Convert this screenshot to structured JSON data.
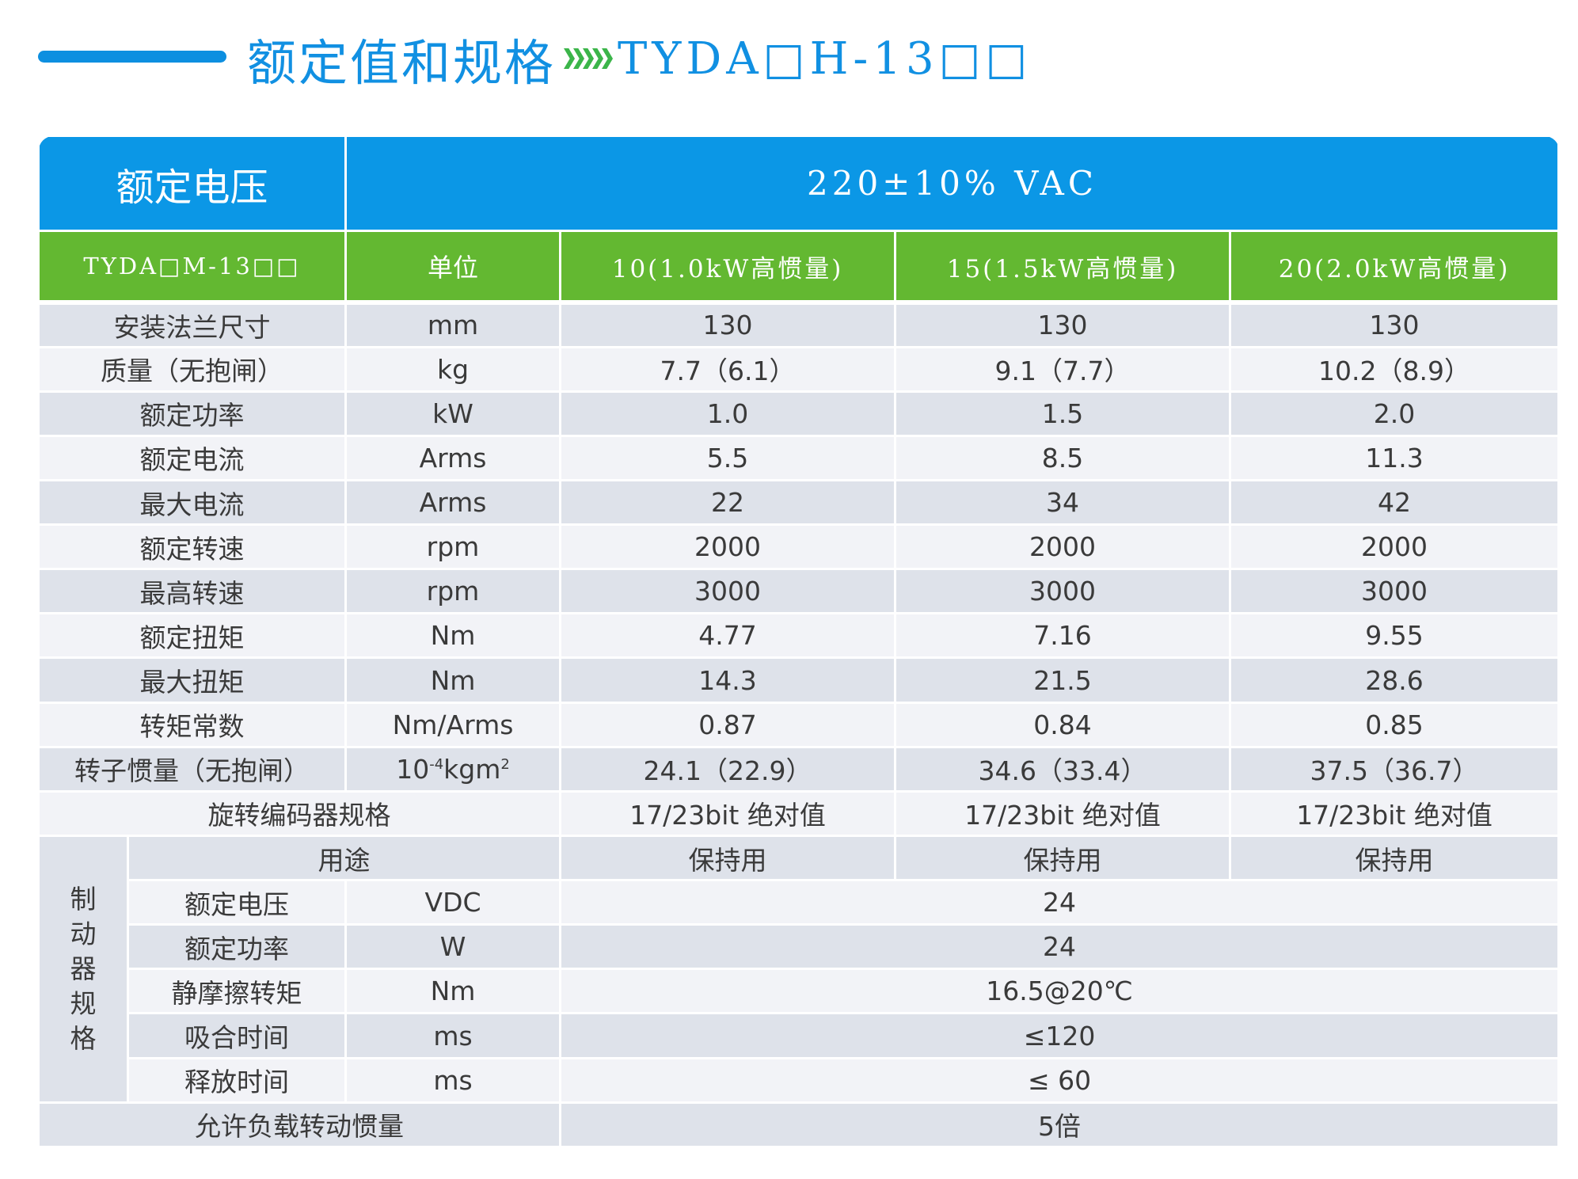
{
  "heading": {
    "title": "额定值和规格",
    "model": "TYDA□H-13□□"
  },
  "table": {
    "header": {
      "label": "额定电压",
      "voltage": "220±10% VAC"
    },
    "subheader": {
      "model": "TYDA□M-13□□",
      "unit": "单位",
      "columns": [
        "10(1.0kW高惯量)",
        "15(1.5kW高惯量)",
        "20(2.0kW高惯量)"
      ]
    },
    "rows": [
      {
        "name": "安装法兰尺寸",
        "unit": "mm",
        "values": [
          "130",
          "130",
          "130"
        ]
      },
      {
        "name": "质量（无抱闸）",
        "unit": "kg",
        "values": [
          "7.7（6.1）",
          "9.1（7.7）",
          "10.2（8.9）"
        ]
      },
      {
        "name": "额定功率",
        "unit": "kW",
        "values": [
          "1.0",
          "1.5",
          "2.0"
        ]
      },
      {
        "name": "额定电流",
        "unit": "Arms",
        "values": [
          "5.5",
          "8.5",
          "11.3"
        ]
      },
      {
        "name": "最大电流",
        "unit": "Arms",
        "values": [
          "22",
          "34",
          "42"
        ]
      },
      {
        "name": "额定转速",
        "unit": "rpm",
        "values": [
          "2000",
          "2000",
          "2000"
        ]
      },
      {
        "name": "最高转速",
        "unit": "rpm",
        "values": [
          "3000",
          "3000",
          "3000"
        ]
      },
      {
        "name": "额定扭矩",
        "unit": "Nm",
        "values": [
          "4.77",
          "7.16",
          "9.55"
        ]
      },
      {
        "name": "最大扭矩",
        "unit": "Nm",
        "values": [
          "14.3",
          "21.5",
          "28.6"
        ]
      },
      {
        "name": "转矩常数",
        "unit": "Nm/Arms",
        "values": [
          "0.87",
          "0.84",
          "0.85"
        ]
      }
    ],
    "inertia_row": {
      "name": "转子惯量（无抱闸）",
      "unit_base": "10",
      "unit_exp": "-4",
      "unit_mid": "kgm",
      "unit_exp2": "2",
      "values": [
        "24.1（22.9）",
        "34.6（33.4）",
        "37.5（36.7）"
      ]
    },
    "encoder_row": {
      "name": "旋转编码器规格",
      "values": [
        "17/23bit 绝对值",
        "17/23bit 绝对值",
        "17/23bit 绝对值"
      ]
    },
    "brake": {
      "group_label": "制动器规格",
      "usage": {
        "name": "用途",
        "values": [
          "保持用",
          "保持用",
          "保持用"
        ]
      },
      "rows": [
        {
          "name": "额定电压",
          "unit": "VDC",
          "value": "24"
        },
        {
          "name": "额定功率",
          "unit": "W",
          "value": "24"
        },
        {
          "name": "静摩擦转矩",
          "unit": "Nm",
          "value": "16.5@20℃"
        },
        {
          "name": "吸合时间",
          "unit": "ms",
          "value": "≤120"
        },
        {
          "name": "释放时间",
          "unit": "ms",
          "value": "≤ 60"
        }
      ]
    },
    "load_row": {
      "name": "允许负载转动惯量",
      "value": "5倍"
    }
  }
}
